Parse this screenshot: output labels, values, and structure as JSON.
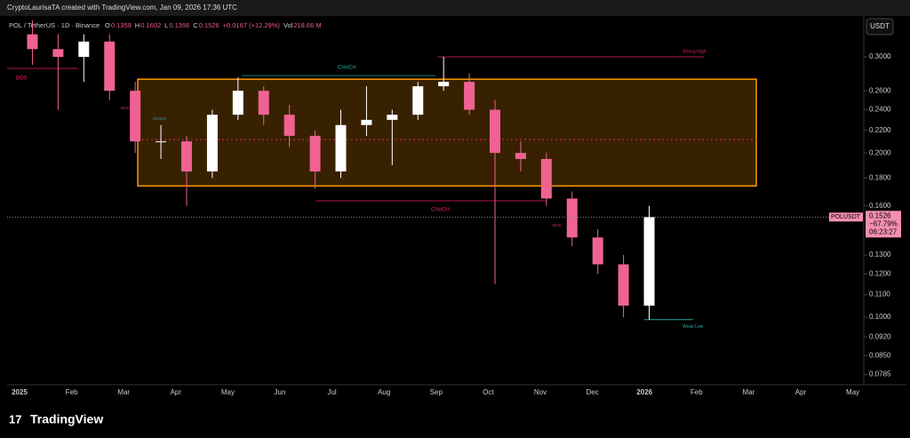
{
  "header": {
    "credit": "CryptoLaurisaTA created with TradingView.com, Jan 09, 2026 17:36 UTC",
    "logo": "TradingView"
  },
  "chart_data": {
    "type": "candlestick",
    "symbol": "POL / TetherUS · 1D · Binance",
    "ohlc_text": {
      "open_label": "O",
      "open": "0.1359",
      "high_label": "H",
      "high": "0.1602",
      "low_label": "L",
      "low": "0.1356",
      "close_label": "C",
      "close": "0.1526",
      "change": "+0.0167 (+12.29%)",
      "vol_label": "Vol",
      "volume": "218.66 M"
    },
    "currency": "USDT",
    "log_scale": true,
    "up_color": "#ffffff",
    "down_color": "#f06292",
    "open": [
      0.33,
      0.31,
      0.3,
      0.32,
      0.26,
      0.21,
      0.21,
      0.185,
      0.235,
      0.26,
      0.235,
      0.215,
      0.185,
      0.225,
      0.23,
      0.235,
      0.265,
      0.27,
      0.24,
      0.2,
      0.195,
      0.165,
      0.14,
      0.125,
      0.105
    ],
    "high": [
      0.35,
      0.33,
      0.33,
      0.33,
      0.27,
      0.225,
      0.215,
      0.24,
      0.275,
      0.265,
      0.245,
      0.22,
      0.24,
      0.265,
      0.24,
      0.27,
      0.3,
      0.28,
      0.25,
      0.21,
      0.2,
      0.17,
      0.145,
      0.13,
      0.16
    ],
    "low": [
      0.29,
      0.24,
      0.27,
      0.25,
      0.2,
      0.195,
      0.16,
      0.18,
      0.23,
      0.225,
      0.205,
      0.172,
      0.18,
      0.215,
      0.19,
      0.23,
      0.26,
      0.235,
      0.115,
      0.185,
      0.16,
      0.135,
      0.12,
      0.1,
      0.099
    ],
    "close": [
      0.31,
      0.3,
      0.32,
      0.26,
      0.21,
      0.21,
      0.185,
      0.235,
      0.26,
      0.235,
      0.215,
      0.185,
      0.225,
      0.23,
      0.235,
      0.265,
      0.27,
      0.24,
      0.2,
      0.195,
      0.165,
      0.14,
      0.125,
      0.105,
      0.1526
    ],
    "ylim": [
      0.0755,
      0.3565
    ],
    "yticks": [
      {
        "value": 0.3,
        "label": "0.3000"
      },
      {
        "value": 0.26,
        "label": "0.2600"
      },
      {
        "value": 0.24,
        "label": "0.2400"
      },
      {
        "value": 0.22,
        "label": "0.2200"
      },
      {
        "value": 0.2,
        "label": "0.2000"
      },
      {
        "value": 0.18,
        "label": "0.1800"
      },
      {
        "value": 0.16,
        "label": "0.1600"
      },
      {
        "value": 0.13,
        "label": "0.1300"
      },
      {
        "value": 0.12,
        "label": "0.1200"
      },
      {
        "value": 0.11,
        "label": "0.1100"
      },
      {
        "value": 0.1,
        "label": "0.1000"
      },
      {
        "value": 0.092,
        "label": "0.0920"
      },
      {
        "value": 0.085,
        "label": "0.0850"
      },
      {
        "value": 0.0785,
        "label": "0.0785"
      }
    ],
    "time_labels": [
      "2025",
      "Feb",
      "Mar",
      "Apr",
      "May",
      "Jun",
      "Jul",
      "Aug",
      "Sep",
      "Oct",
      "Nov",
      "Dec",
      "2026",
      "Feb",
      "Mar",
      "Apr",
      "May"
    ],
    "range_box": {
      "top": 0.273,
      "bottom": 0.174,
      "color": "#ff9800"
    },
    "strong_high": {
      "label": "Strong High",
      "value": 0.3
    },
    "weak_low": {
      "label": "Weak Low",
      "value": 0.099
    },
    "last_price": {
      "name": "POLUSDT",
      "value": 0.1526,
      "label": "0.1526",
      "change": "−67.79%",
      "countdown": "06:23:27"
    },
    "annotations": [
      "BOS",
      "CHoCH",
      "CHoCH",
      "BOS",
      "CHoCH",
      "BOS"
    ]
  }
}
